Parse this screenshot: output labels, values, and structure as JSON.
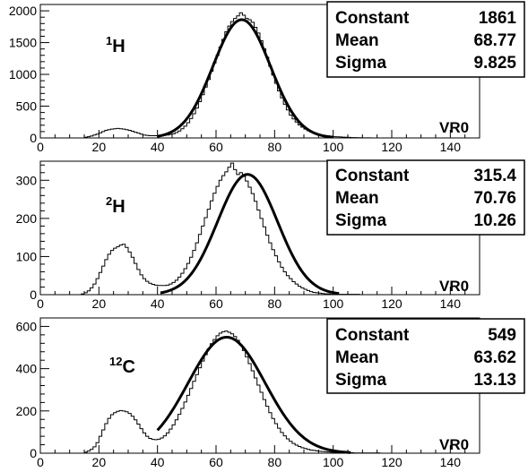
{
  "chart_data": [
    {
      "type": "histogram",
      "nucleus": {
        "mass": "1",
        "symbol": "H"
      },
      "xlabel": "VR0",
      "xlim": [
        0,
        150
      ],
      "ylim": [
        0,
        2100
      ],
      "xticks": [
        0,
        20,
        40,
        60,
        80,
        100,
        120,
        140
      ],
      "yticks": [
        0,
        500,
        1000,
        1500,
        2000
      ],
      "stats": [
        {
          "label": "Constant",
          "value": "1861"
        },
        {
          "label": "Mean",
          "value": "68.77"
        },
        {
          "label": "Sigma",
          "value": "9.825"
        }
      ],
      "fit": {
        "function": "gaussian",
        "constant": 1861,
        "mean": 68.77,
        "sigma": 9.825,
        "range": [
          40,
          100
        ]
      },
      "bin_width": 1,
      "hist_x": [
        15,
        16,
        17,
        18,
        19,
        20,
        21,
        22,
        23,
        24,
        25,
        26,
        27,
        28,
        29,
        30,
        31,
        32,
        33,
        34,
        35,
        36,
        37,
        38,
        39,
        40,
        41,
        42,
        43,
        44,
        45,
        46,
        47,
        48,
        49,
        50,
        51,
        52,
        53,
        54,
        55,
        56,
        57,
        58,
        59,
        60,
        61,
        62,
        63,
        64,
        65,
        66,
        67,
        68,
        69,
        70,
        71,
        72,
        73,
        74,
        75,
        76,
        77,
        78,
        79,
        80,
        81,
        82,
        83,
        84,
        85,
        86,
        87,
        88,
        89,
        90,
        91,
        92,
        93,
        94,
        95,
        96,
        97,
        98,
        99,
        100,
        101,
        102,
        103,
        104,
        105,
        106,
        107,
        108,
        109,
        110,
        111,
        112
      ],
      "hist_y": [
        10,
        20,
        30,
        45,
        60,
        80,
        100,
        120,
        130,
        140,
        145,
        150,
        145,
        140,
        130,
        120,
        105,
        90,
        75,
        60,
        45,
        40,
        35,
        35,
        35,
        35,
        40,
        40,
        45,
        55,
        65,
        85,
        110,
        145,
        185,
        240,
        305,
        380,
        470,
        570,
        680,
        800,
        920,
        1050,
        1180,
        1300,
        1430,
        1550,
        1670,
        1760,
        1830,
        1880,
        1920,
        1970,
        1930,
        1880,
        1860,
        1820,
        1740,
        1650,
        1530,
        1400,
        1270,
        1130,
        990,
        860,
        740,
        630,
        530,
        440,
        360,
        300,
        250,
        205,
        170,
        140,
        115,
        95,
        75,
        60,
        50,
        40,
        35,
        30,
        25,
        20,
        18,
        15,
        12,
        10,
        8,
        6,
        5,
        4,
        3,
        2,
        2,
        1
      ]
    },
    {
      "type": "histogram",
      "nucleus": {
        "mass": "2",
        "symbol": "H"
      },
      "xlabel": "VR0",
      "xlim": [
        0,
        150
      ],
      "ylim": [
        0,
        350
      ],
      "xticks": [
        0,
        20,
        40,
        60,
        80,
        100,
        120,
        140
      ],
      "yticks": [
        0,
        100,
        200,
        300
      ],
      "stats": [
        {
          "label": "Constant",
          "value": "315.4"
        },
        {
          "label": "Mean",
          "value": "70.76"
        },
        {
          "label": "Sigma",
          "value": "10.26"
        }
      ],
      "fit": {
        "function": "gaussian",
        "constant": 315.4,
        "mean": 70.76,
        "sigma": 10.26,
        "range": [
          41,
          102
        ]
      },
      "bin_width": 1,
      "hist_x": [
        14,
        15,
        16,
        17,
        18,
        19,
        20,
        21,
        22,
        23,
        24,
        25,
        26,
        27,
        28,
        29,
        30,
        31,
        32,
        33,
        34,
        35,
        36,
        37,
        38,
        39,
        40,
        41,
        42,
        43,
        44,
        45,
        46,
        47,
        48,
        49,
        50,
        51,
        52,
        53,
        54,
        55,
        56,
        57,
        58,
        59,
        60,
        61,
        62,
        63,
        64,
        65,
        66,
        67,
        68,
        69,
        70,
        71,
        72,
        73,
        74,
        75,
        76,
        77,
        78,
        79,
        80,
        81,
        82,
        83,
        84,
        85,
        86,
        87,
        88,
        89,
        90,
        91,
        92,
        93,
        94,
        95,
        96,
        97,
        98,
        99,
        100,
        101,
        102,
        103,
        104,
        105,
        106,
        107,
        108
      ],
      "hist_y": [
        2,
        5,
        10,
        18,
        28,
        42,
        58,
        75,
        92,
        106,
        116,
        122,
        126,
        130,
        132,
        124,
        112,
        98,
        82,
        66,
        52,
        42,
        35,
        30,
        27,
        25,
        24,
        24,
        24,
        25,
        28,
        32,
        38,
        46,
        56,
        68,
        82,
        98,
        116,
        136,
        158,
        180,
        202,
        224,
        246,
        266,
        284,
        300,
        312,
        322,
        334,
        345,
        328,
        315,
        320,
        310,
        298,
        282,
        265,
        245,
        222,
        200,
        178,
        156,
        136,
        118,
        102,
        86,
        72,
        60,
        50,
        42,
        34,
        28,
        22,
        18,
        14,
        11,
        8,
        6,
        5,
        4,
        3,
        2,
        2,
        1,
        1,
        1,
        1,
        1,
        1,
        1,
        1,
        1,
        1
      ]
    },
    {
      "type": "histogram",
      "nucleus": {
        "mass": "12",
        "symbol": "C"
      },
      "xlabel": "VR0",
      "xlim": [
        0,
        150
      ],
      "ylim": [
        0,
        640
      ],
      "xticks": [
        0,
        20,
        40,
        60,
        80,
        100,
        120,
        140
      ],
      "yticks": [
        0,
        200,
        400,
        600
      ],
      "stats": [
        {
          "label": "Constant",
          "value": "549"
        },
        {
          "label": "Mean",
          "value": "63.62"
        },
        {
          "label": "Sigma",
          "value": "13.13"
        }
      ],
      "fit": {
        "function": "gaussian",
        "constant": 549,
        "mean": 63.62,
        "sigma": 13.13,
        "range": [
          40,
          106
        ]
      },
      "bin_width": 1,
      "hist_x": [
        15,
        16,
        17,
        18,
        19,
        20,
        21,
        22,
        23,
        24,
        25,
        26,
        27,
        28,
        29,
        30,
        31,
        32,
        33,
        34,
        35,
        36,
        37,
        38,
        39,
        40,
        41,
        42,
        43,
        44,
        45,
        46,
        47,
        48,
        49,
        50,
        51,
        52,
        53,
        54,
        55,
        56,
        57,
        58,
        59,
        60,
        61,
        62,
        63,
        64,
        65,
        66,
        67,
        68,
        69,
        70,
        71,
        72,
        73,
        74,
        75,
        76,
        77,
        78,
        79,
        80,
        81,
        82,
        83,
        84,
        85,
        86,
        87,
        88,
        89,
        90,
        91,
        92,
        93,
        94,
        95,
        96,
        97,
        98,
        99,
        100,
        101,
        102,
        103,
        104,
        105,
        106,
        107,
        108,
        109,
        110,
        111,
        112,
        113,
        114,
        115
      ],
      "hist_y": [
        5,
        10,
        18,
        30,
        50,
        80,
        110,
        140,
        165,
        182,
        192,
        198,
        202,
        200,
        196,
        188,
        175,
        158,
        138,
        116,
        96,
        80,
        70,
        65,
        64,
        66,
        72,
        82,
        96,
        114,
        134,
        158,
        184,
        212,
        242,
        274,
        306,
        340,
        372,
        404,
        436,
        466,
        494,
        518,
        538,
        556,
        568,
        575,
        578,
        572,
        565,
        552,
        534,
        512,
        486,
        456,
        424,
        390,
        356,
        322,
        288,
        254,
        222,
        192,
        164,
        140,
        118,
        98,
        82,
        68,
        56,
        46,
        38,
        32,
        26,
        22,
        18,
        15,
        13,
        11,
        9,
        8,
        7,
        6,
        5,
        4,
        4,
        3,
        3,
        2,
        2,
        2,
        1,
        1,
        1,
        1,
        1,
        1,
        1,
        1,
        1
      ]
    }
  ]
}
